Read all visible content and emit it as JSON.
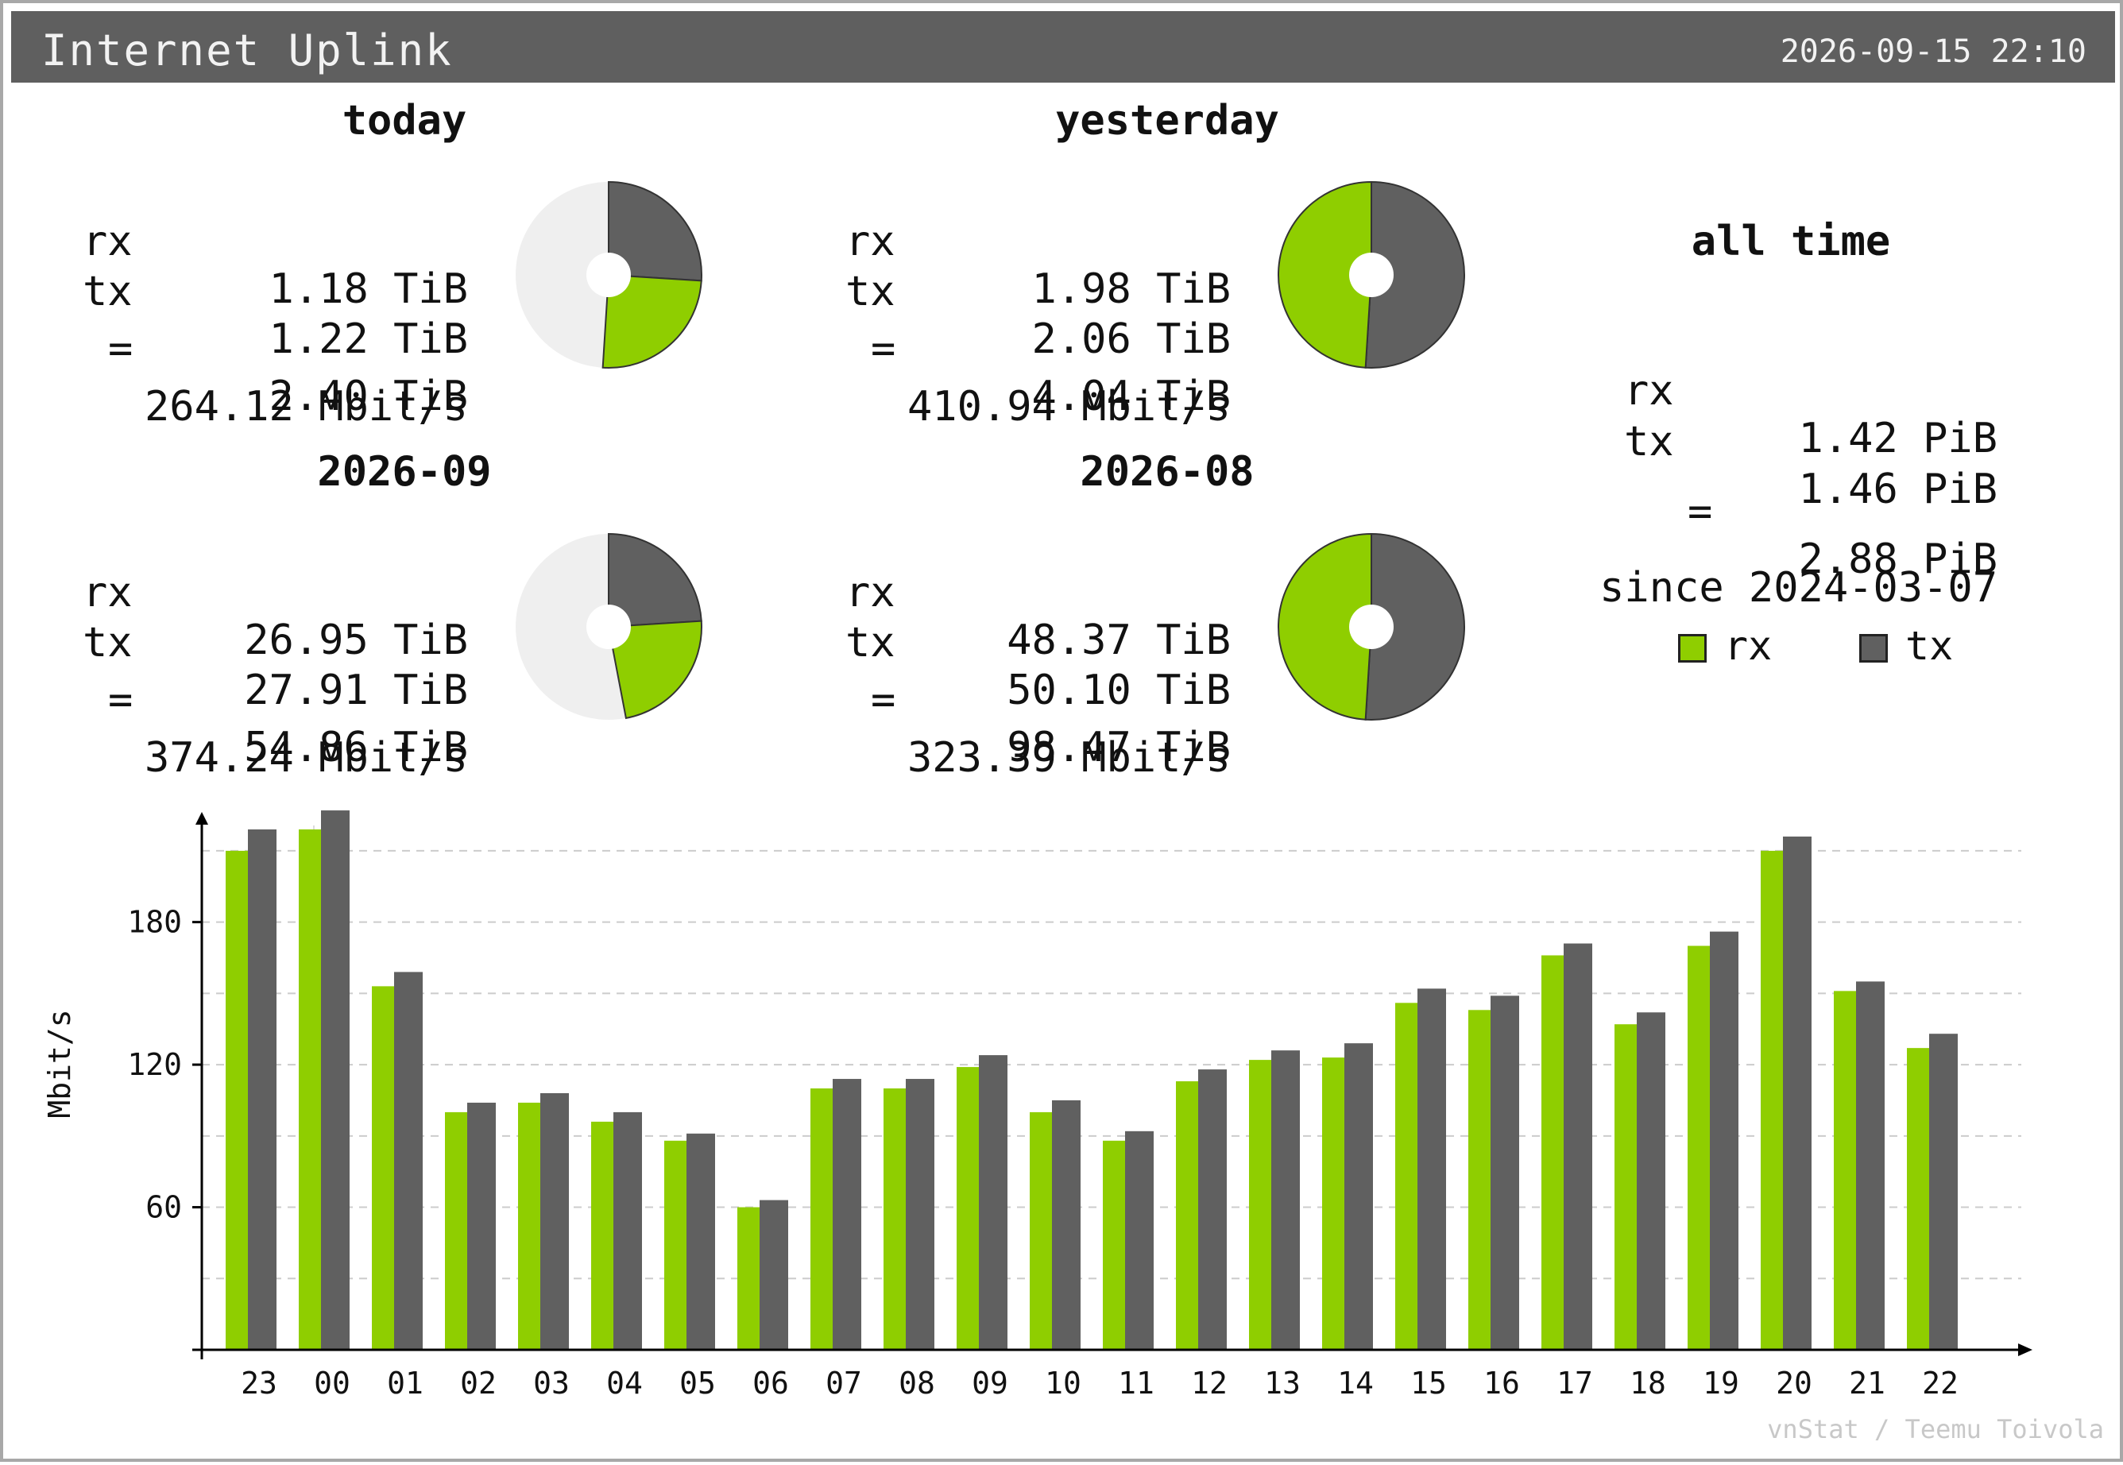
{
  "header": {
    "title": "Internet Uplink",
    "timestamp": "2026-09-15 22:10"
  },
  "panels": {
    "today": {
      "title": "today",
      "rx": "1.18 TiB",
      "tx": "1.22 TiB",
      "total": "2.40 TiB",
      "rate": "264.12 Mbit/s",
      "pie": {
        "rx_fraction": 0.25,
        "tx_fraction": 0.26
      }
    },
    "yesterday": {
      "title": "yesterday",
      "rx": "1.98 TiB",
      "tx": "2.06 TiB",
      "total": "4.04 TiB",
      "rate": "410.94 Mbit/s",
      "pie": {
        "rx_fraction": 0.49,
        "tx_fraction": 0.51
      }
    },
    "month_cur": {
      "title": "2026-09",
      "rx": "26.95 TiB",
      "tx": "27.91 TiB",
      "total": "54.86 TiB",
      "rate": "374.24 Mbit/s",
      "pie": {
        "rx_fraction": 0.23,
        "tx_fraction": 0.24
      }
    },
    "month_prev": {
      "title": "2026-08",
      "rx": "48.37 TiB",
      "tx": "50.10 TiB",
      "total": "98.47 TiB",
      "rate": "323.39 Mbit/s",
      "pie": {
        "rx_fraction": 0.49,
        "tx_fraction": 0.51
      }
    }
  },
  "labels": {
    "rx": "rx",
    "tx": "tx",
    "eq": "="
  },
  "alltime": {
    "title": "all time",
    "rx": "1.42 PiB",
    "tx": "1.46 PiB",
    "total": "2.88 PiB",
    "since": "since 2024-03-07"
  },
  "legend": {
    "rx": "rx",
    "tx": "tx"
  },
  "colors": {
    "rx": "#8fce00",
    "tx": "#606060",
    "pie_bg": "#efefef",
    "grid": "#cccccc",
    "axis": "#000000"
  },
  "footer": "vnStat / Teemu Toivola",
  "chart_data": {
    "type": "bar",
    "ylabel": "Mbit/s",
    "yticks": [
      "60",
      "120",
      "180"
    ],
    "ylim": [
      0,
      220
    ],
    "categories": [
      "23",
      "00",
      "01",
      "02",
      "03",
      "04",
      "05",
      "06",
      "07",
      "08",
      "09",
      "10",
      "11",
      "12",
      "13",
      "14",
      "15",
      "16",
      "17",
      "18",
      "19",
      "20",
      "21",
      "22"
    ],
    "series": [
      {
        "name": "rx",
        "values": [
          210,
          219,
          153,
          100,
          104,
          96,
          88,
          60,
          110,
          110,
          119,
          100,
          88,
          113,
          122,
          123,
          146,
          143,
          166,
          137,
          170,
          210,
          151,
          127
        ]
      },
      {
        "name": "tx",
        "values": [
          219,
          227,
          159,
          104,
          108,
          100,
          91,
          63,
          114,
          114,
          124,
          105,
          92,
          118,
          126,
          129,
          152,
          149,
          171,
          142,
          176,
          216,
          155,
          133
        ]
      }
    ],
    "grid": true
  }
}
